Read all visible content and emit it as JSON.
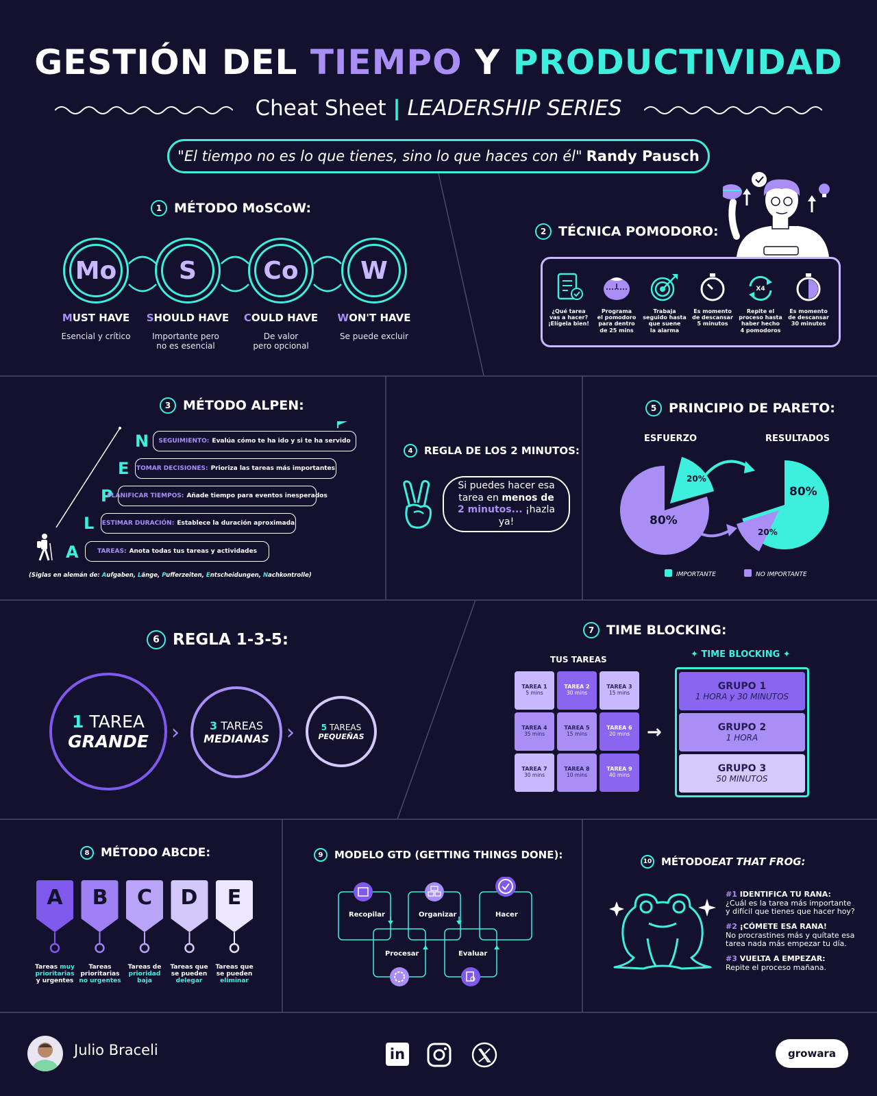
{
  "header": {
    "title_part1": "GESTIÓN DEL ",
    "title_part2": "TIEMPO",
    "title_part3": " Y ",
    "title_part4": "PRODUCTIVIDAD",
    "subtitle_part1": "Cheat Sheet ",
    "subtitle_sep": "|",
    "subtitle_part2": " LEADERSHIP SERIES",
    "quote": "\"El tiempo no es lo que tienes, sino lo que haces con él\"",
    "quote_author": "Randy Pausch"
  },
  "moscow": {
    "num": "1",
    "title": "MÉTODO MoSCoW:",
    "items": [
      {
        "code": "Mo",
        "first": "M",
        "rest": "UST HAVE",
        "desc1": "Esencial y crítico",
        "desc2": ""
      },
      {
        "code": "S",
        "first": "S",
        "rest": "HOULD HAVE",
        "desc1": "Importante pero",
        "desc2": "no es esencial"
      },
      {
        "code": "Co",
        "first": "C",
        "rest": "OULD HAVE",
        "desc1": "De valor",
        "desc2": "pero opcional"
      },
      {
        "code": "W",
        "first": "W",
        "rest": "ON'T HAVE",
        "desc1": "Se puede excluir",
        "desc2": ""
      }
    ]
  },
  "pomodoro": {
    "num": "2",
    "title": "TÉCNICA POMODORO:",
    "badge": "X4",
    "steps": [
      {
        "l1": "¿Qué tarea",
        "l2": "vas a hacer?",
        "l3": "¡Elígela bien!",
        "l4": ""
      },
      {
        "l1": "Programa",
        "l2": "el pomodoro",
        "l3": "para dentro",
        "l4": "de 25 mins"
      },
      {
        "l1": "Trabaja",
        "l2": "seguido hasta",
        "l3": "que suene",
        "l4": "la alarma"
      },
      {
        "l1": "Es momento",
        "l2": "de descansar",
        "l3": "5 minutos",
        "l4": ""
      },
      {
        "l1": "Repite el",
        "l2": "proceso hasta",
        "l3": "haber hecho",
        "l4": "4 pomodoros"
      },
      {
        "l1": "Es momento",
        "l2": "de descansar",
        "l3": "30 minutos",
        "l4": ""
      }
    ]
  },
  "alpen": {
    "num": "3",
    "title": "MÉTODO ALPEN:",
    "rows": [
      {
        "letter": "N",
        "key": "SEGUIMIENTO:",
        "text": "Evalúa cómo te ha ido y si te ha servido"
      },
      {
        "letter": "E",
        "key": "TOMAR DECISIONES:",
        "text": "Prioriza las tareas más importantes"
      },
      {
        "letter": "P",
        "key": "PLANIFICAR TIEMPOS:",
        "text": "Añade tiempo para eventos inesperados"
      },
      {
        "letter": "L",
        "key": "ESTIMAR DURACIÓN:",
        "text": "Establece la duración aproximada"
      },
      {
        "letter": "A",
        "key": "TAREAS:",
        "text": "Anota todas tus tareas y actividades"
      }
    ],
    "note_prefix": "(Siglas en alemán de: ",
    "note_words": [
      {
        "f": "A",
        "r": "ufgaben, "
      },
      {
        "f": "L",
        "r": "änge, "
      },
      {
        "f": "P",
        "r": "ufferzeiten, "
      },
      {
        "f": "E",
        "r": "ntscheidungen, "
      },
      {
        "f": "N",
        "r": "achkontrolle"
      }
    ],
    "note_suffix": ")"
  },
  "two_min": {
    "num": "4",
    "title": "REGLA DE LOS 2 MINUTOS:",
    "l1": "Si puedes hacer esa",
    "l2a": "tarea en ",
    "l2b": "menos de",
    "l3a": "2 minutos...",
    "l3b": " ¡hazla ya!"
  },
  "pareto": {
    "num": "5",
    "title": "PRINCIPIO DE PARETO:",
    "left_head": "ESFUERZO",
    "right_head": "RESULTADOS",
    "left_big": "80%",
    "left_small": "20%",
    "right_big": "80%",
    "right_small": "20%",
    "legend_important": "IMPORTANTE",
    "legend_not": "NO IMPORTANTE",
    "color_important": "#3df0de",
    "color_not": "#a98ff5"
  },
  "rule135": {
    "num": "6",
    "title": "REGLA 1-3-5:",
    "big_num": "1",
    "big_word": " TAREA",
    "big_sub": "GRANDE",
    "mid_num": "3",
    "mid_word": " TAREAS",
    "mid_sub": "MEDIANAS",
    "small_num": "5",
    "small_word": " TAREAS",
    "small_sub": "PEQUEÑAS"
  },
  "time_blocking": {
    "num": "7",
    "title": "TIME BLOCKING:",
    "tasks_head": "TUS TAREAS",
    "blocks_head": "TIME BLOCKING",
    "tasks": [
      {
        "name": "TAREA 1",
        "mins": "5 mins",
        "color": "#c9b8ff"
      },
      {
        "name": "TAREA 2",
        "mins": "30 mins",
        "color": "#8a66f0"
      },
      {
        "name": "TAREA 3",
        "mins": "15 mins",
        "color": "#c9b8ff"
      },
      {
        "name": "TAREA 4",
        "mins": "35 mins",
        "color": "#a98ff5"
      },
      {
        "name": "TAREA 5",
        "mins": "15 mins",
        "color": "#a98ff5"
      },
      {
        "name": "TAREA 6",
        "mins": "20 mins",
        "color": "#8a66f0"
      },
      {
        "name": "TAREA 7",
        "mins": "30 mins",
        "color": "#c9b8ff"
      },
      {
        "name": "TAREA 8",
        "mins": "10 mins",
        "color": "#a98ff5"
      },
      {
        "name": "TAREA 9",
        "mins": "40 mins",
        "color": "#8a66f0"
      }
    ],
    "groups": [
      {
        "name": "GRUPO 1",
        "time": "1 HORA y 30 MINUTOS",
        "color": "#8a66f0"
      },
      {
        "name": "GRUPO 2",
        "time": "1 HORA",
        "color": "#a98ff5"
      },
      {
        "name": "GRUPO 3",
        "time": "50 MINUTOS",
        "color": "#d5c9fb"
      }
    ]
  },
  "abcde": {
    "num": "8",
    "title": "MÉTODO ABCDE:",
    "items": [
      {
        "letter": "A",
        "l1a": "Tareas ",
        "l1b": "muy",
        "l2": "prioritarias",
        "l3": "y urgentes",
        "color": "#7f59ec",
        "hl": "l2"
      },
      {
        "letter": "B",
        "l1a": "Tareas",
        "l1b": "",
        "l2": "prioritarias",
        "l3": "no urgentes",
        "color": "#9d80f3",
        "hl": "l3"
      },
      {
        "letter": "C",
        "l1a": "Tareas de",
        "l1b": "",
        "l2": "prioridad",
        "l3": "baja",
        "color": "#b9a4f7",
        "hl": "l23"
      },
      {
        "letter": "D",
        "l1a": "Tareas que",
        "l1b": "",
        "l2": "se pueden",
        "l3": "delegar",
        "color": "#d4c8fb",
        "hl": "l3"
      },
      {
        "letter": "E",
        "l1a": "Tareas que",
        "l1b": "",
        "l2": "se pueden",
        "l3": "eliminar",
        "color": "#ece6fe",
        "hl": "l3"
      }
    ]
  },
  "gtd": {
    "num": "9",
    "title": "MODELO GTD (GETTING THINGS DONE):",
    "steps": [
      "Recopilar",
      "Organizar",
      "Hacer",
      "Procesar",
      "Evaluar"
    ]
  },
  "frog": {
    "num": "10",
    "title_a": "MÉTODO ",
    "title_b": "EAT THAT FROG:",
    "points": [
      {
        "n": "#1",
        "head": " IDENTIFICA TU RANA:",
        "l1": "¿Cuál es la tarea más importante",
        "l2": "y difícil que tienes que hacer hoy?"
      },
      {
        "n": "#2",
        "head": " ¡CÓMETE ESA RANA!",
        "l1": "No procrastines más y quítate esa",
        "l2": "tarea nada más empezar tu día."
      },
      {
        "n": "#3",
        "head": " VUELTA A EMPEZAR:",
        "l1": "Repite el proceso mañana.",
        "l2": ""
      }
    ]
  },
  "footer": {
    "author": "Julio Braceli",
    "brand": "growara",
    "socials": [
      "linkedin-icon",
      "instagram-icon",
      "x-icon"
    ]
  }
}
